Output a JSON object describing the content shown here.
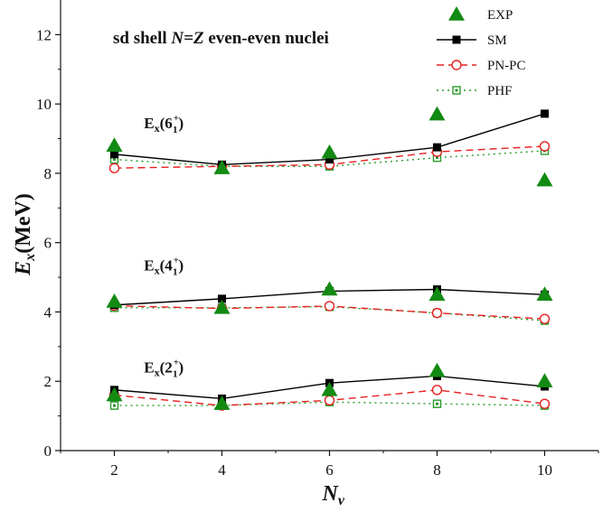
{
  "chart_data": {
    "type": "line",
    "title": {
      "pre": "sd shell ",
      "italic": "N=Z",
      "post": " even-even nuclei"
    },
    "xlabel": {
      "main": "N",
      "sub": "v"
    },
    "ylabel": {
      "main": "E",
      "sub": "x",
      "post": "(MeV)"
    },
    "xlim": [
      1,
      11
    ],
    "ylim": [
      0,
      13
    ],
    "xticks": [
      2,
      4,
      6,
      8,
      10
    ],
    "yticks": [
      0,
      2,
      4,
      6,
      8,
      10,
      12
    ],
    "legend_position": "top-right",
    "series": [
      {
        "name": "EXP",
        "marker": "triangle",
        "line": "none",
        "color": "#138a13",
        "groups": {
          "2+": [
            [
              2,
              1.6
            ],
            [
              4,
              1.35
            ],
            [
              6,
              1.75
            ],
            [
              8,
              2.3
            ],
            [
              10,
              2.0
            ]
          ],
          "4+": [
            [
              2,
              4.3
            ],
            [
              4,
              4.12
            ],
            [
              6,
              4.65
            ],
            [
              8,
              4.5
            ],
            [
              10,
              4.5
            ]
          ],
          "6+": [
            [
              2,
              8.8
            ],
            [
              4,
              8.15
            ],
            [
              6,
              8.6
            ],
            [
              8,
              9.7
            ],
            [
              10,
              7.8
            ]
          ]
        }
      },
      {
        "name": "SM",
        "marker": "square-filled",
        "line": "solid",
        "color": "#000000",
        "groups": {
          "2+": [
            [
              2,
              1.75
            ],
            [
              4,
              1.5
            ],
            [
              6,
              1.95
            ],
            [
              8,
              2.15
            ],
            [
              10,
              1.85
            ]
          ],
          "4+": [
            [
              2,
              4.2
            ],
            [
              4,
              4.38
            ],
            [
              6,
              4.6
            ],
            [
              8,
              4.65
            ],
            [
              10,
              4.5
            ]
          ],
          "6+": [
            [
              2,
              8.55
            ],
            [
              4,
              8.25
            ],
            [
              6,
              8.4
            ],
            [
              8,
              8.75
            ],
            [
              10,
              9.72
            ]
          ]
        }
      },
      {
        "name": "PN-PC",
        "marker": "circle-open",
        "line": "dashed",
        "color": "#e82020",
        "groups": {
          "2+": [
            [
              2,
              1.6
            ],
            [
              4,
              1.3
            ],
            [
              6,
              1.45
            ],
            [
              8,
              1.75
            ],
            [
              10,
              1.35
            ]
          ],
          "4+": [
            [
              2,
              4.18
            ],
            [
              4,
              4.1
            ],
            [
              6,
              4.17
            ],
            [
              8,
              3.97
            ],
            [
              10,
              3.8
            ]
          ],
          "6+": [
            [
              2,
              8.15
            ],
            [
              4,
              8.2
            ],
            [
              6,
              8.25
            ],
            [
              8,
              8.62
            ],
            [
              10,
              8.78
            ]
          ]
        }
      },
      {
        "name": "PHF",
        "marker": "square-open-dot",
        "line": "dotted",
        "color": "#2a9a2a",
        "groups": {
          "2+": [
            [
              2,
              1.3
            ],
            [
              4,
              1.3
            ],
            [
              6,
              1.4
            ],
            [
              8,
              1.35
            ],
            [
              10,
              1.3
            ]
          ],
          "4+": [
            [
              2,
              4.12
            ],
            [
              4,
              4.12
            ],
            [
              6,
              4.15
            ],
            [
              8,
              3.97
            ],
            [
              10,
              3.75
            ]
          ],
          "6+": [
            [
              2,
              8.4
            ],
            [
              4,
              8.2
            ],
            [
              6,
              8.2
            ],
            [
              8,
              8.45
            ],
            [
              10,
              8.65
            ]
          ]
        }
      }
    ],
    "annotations": [
      {
        "base": "E",
        "sub": "x",
        "state": "6",
        "state_sub": "1",
        "state_sup": "+",
        "x": 2.55,
        "y": 9.3
      },
      {
        "base": "E",
        "sub": "x",
        "state": "4",
        "state_sub": "1",
        "state_sup": "+",
        "x": 2.55,
        "y": 5.2
      },
      {
        "base": "E",
        "sub": "x",
        "state": "2",
        "state_sub": "1",
        "state_sup": "+",
        "x": 2.55,
        "y": 2.25
      }
    ]
  }
}
